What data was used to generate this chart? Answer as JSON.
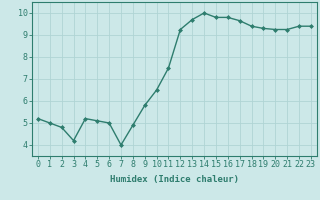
{
  "x": [
    0,
    1,
    2,
    3,
    4,
    5,
    6,
    7,
    8,
    9,
    10,
    11,
    12,
    13,
    14,
    15,
    16,
    17,
    18,
    19,
    20,
    21,
    22,
    23
  ],
  "y": [
    5.2,
    5.0,
    4.8,
    4.2,
    5.2,
    5.1,
    5.0,
    4.0,
    4.9,
    5.8,
    6.5,
    7.5,
    9.25,
    9.7,
    10.0,
    9.8,
    9.8,
    9.65,
    9.4,
    9.3,
    9.25,
    9.25,
    9.4,
    9.4
  ],
  "xlabel": "Humidex (Indice chaleur)",
  "line_color": "#2e7d6e",
  "marker": "D",
  "marker_size": 2.0,
  "bg_color": "#cce8e8",
  "grid_color": "#b0d4d4",
  "ylim": [
    3.5,
    10.5
  ],
  "xlim": [
    -0.5,
    23.5
  ],
  "yticks": [
    4,
    5,
    6,
    7,
    8,
    9,
    10
  ],
  "xticks": [
    0,
    1,
    2,
    3,
    4,
    5,
    6,
    7,
    8,
    9,
    10,
    11,
    12,
    13,
    14,
    15,
    16,
    17,
    18,
    19,
    20,
    21,
    22,
    23
  ],
  "xlabel_fontsize": 6.5,
  "tick_fontsize": 6,
  "tick_color": "#2e7d6e",
  "axis_color": "#2e7d6e",
  "linewidth": 1.0
}
